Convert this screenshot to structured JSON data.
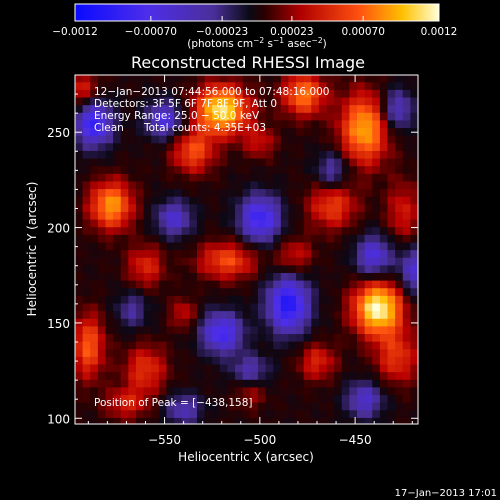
{
  "chart_data": {
    "type": "heatmap",
    "title": "Reconstructed RHESSI Image",
    "xlabel": "Heliocentric X (arcsec)",
    "ylabel": "Heliocentric Y (arcsec)",
    "xlim": [
      -597,
      -417
    ],
    "ylim": [
      97,
      280
    ],
    "x_ticks": [
      {
        "value": -550,
        "label": "−550"
      },
      {
        "value": -500,
        "label": "−500"
      },
      {
        "value": -450,
        "label": "−450"
      }
    ],
    "y_ticks": [
      {
        "value": 100,
        "label": "100"
      },
      {
        "value": 150,
        "label": "150"
      },
      {
        "value": 200,
        "label": "200"
      },
      {
        "value": 250,
        "label": "250"
      }
    ],
    "colorbar": {
      "range": [
        -0.0012,
        0.0012
      ],
      "ticks": [
        {
          "value": -0.0012,
          "label": "−0.0012"
        },
        {
          "value": -0.0007,
          "label": "−0.00070"
        },
        {
          "value": -0.00023,
          "label": "−0.00023"
        },
        {
          "value": 0.00023,
          "label": "0.00023"
        },
        {
          "value": 0.0007,
          "label": "0.00070"
        },
        {
          "value": 0.0012,
          "label": "0.0012"
        }
      ],
      "unit_label": "(photons cm",
      "unit_exp1": "−2",
      "unit_mid": " s",
      "unit_exp2": "−1",
      "unit_tail": " asec",
      "unit_exp3": "−2",
      "unit_close": ")"
    },
    "annotations": {
      "time_range": "12−Jan−2013 07:44:56.000 to 07:48:16.000",
      "detectors": "Detectors: 3F 5F 6F 7F 8F 9F, Att 0",
      "energy_range": "Energy Range: 25.0 − 50.0 keV",
      "method": "Clean",
      "total_counts": "Total counts: 4.35E+03",
      "peak": "Position of Peak = [−438,158]",
      "footer_timestamp": "17−Jan−2013 17:01"
    },
    "peak": {
      "x": -438,
      "y": 158
    },
    "image": {
      "nx": 45,
      "ny": 46,
      "dx_arcsec": 4,
      "dy_arcsec": 4,
      "x_center": -507,
      "y_center": 188.5,
      "sources": [
        {
          "x": -438,
          "y": 158,
          "amp": 0.0012,
          "sx": 9,
          "sy": 10
        },
        {
          "x": -520,
          "y": 262,
          "amp": 0.0011,
          "sx": 10,
          "sy": 9
        },
        {
          "x": -445,
          "y": 252,
          "amp": 0.0009,
          "sx": 9,
          "sy": 13
        },
        {
          "x": -477,
          "y": 270,
          "amp": 0.00075,
          "sx": 8,
          "sy": 8
        },
        {
          "x": -578,
          "y": 212,
          "amp": 0.00085,
          "sx": 8,
          "sy": 9
        },
        {
          "x": -535,
          "y": 240,
          "amp": 0.0006,
          "sx": 8,
          "sy": 8
        },
        {
          "x": -517,
          "y": 183,
          "amp": 0.0006,
          "sx": 11,
          "sy": 7
        },
        {
          "x": -590,
          "y": 138,
          "amp": 0.00065,
          "sx": 6,
          "sy": 12
        },
        {
          "x": -560,
          "y": 180,
          "amp": 0.00045,
          "sx": 7,
          "sy": 8
        },
        {
          "x": -482,
          "y": 185,
          "amp": 0.0004,
          "sx": 7,
          "sy": 7
        },
        {
          "x": -462,
          "y": 212,
          "amp": 0.00055,
          "sx": 9,
          "sy": 9
        },
        {
          "x": -560,
          "y": 126,
          "amp": 0.0005,
          "sx": 8,
          "sy": 9
        },
        {
          "x": -470,
          "y": 130,
          "amp": 0.00045,
          "sx": 7,
          "sy": 7
        },
        {
          "x": -428,
          "y": 132,
          "amp": 0.0005,
          "sx": 8,
          "sy": 10
        },
        {
          "x": -425,
          "y": 208,
          "amp": 0.0004,
          "sx": 6,
          "sy": 12
        },
        {
          "x": -570,
          "y": 108,
          "amp": 0.0004,
          "sx": 8,
          "sy": 6
        },
        {
          "x": -505,
          "y": 114,
          "amp": 0.0003,
          "sx": 6,
          "sy": 6
        },
        {
          "x": -592,
          "y": 272,
          "amp": 0.00045,
          "sx": 6,
          "sy": 7
        },
        {
          "x": -540,
          "y": 155,
          "amp": 0.00035,
          "sx": 5,
          "sy": 6
        },
        {
          "x": -500,
          "y": 245,
          "amp": 0.00035,
          "sx": 6,
          "sy": 6
        },
        {
          "x": -587,
          "y": 255,
          "amp": -0.0009,
          "sx": 7,
          "sy": 9
        },
        {
          "x": -550,
          "y": 257,
          "amp": -0.0007,
          "sx": 7,
          "sy": 7
        },
        {
          "x": -500,
          "y": 205,
          "amp": -0.00085,
          "sx": 8,
          "sy": 9
        },
        {
          "x": -485,
          "y": 160,
          "amp": -0.001,
          "sx": 8,
          "sy": 11
        },
        {
          "x": -545,
          "y": 205,
          "amp": -0.0006,
          "sx": 7,
          "sy": 7
        },
        {
          "x": -520,
          "y": 145,
          "amp": -0.0008,
          "sx": 8,
          "sy": 8
        },
        {
          "x": -440,
          "y": 185,
          "amp": -0.0007,
          "sx": 7,
          "sy": 8
        },
        {
          "x": -428,
          "y": 262,
          "amp": -0.0006,
          "sx": 6,
          "sy": 8
        },
        {
          "x": -420,
          "y": 178,
          "amp": -0.0006,
          "sx": 5,
          "sy": 9
        },
        {
          "x": -540,
          "y": 105,
          "amp": -0.0005,
          "sx": 7,
          "sy": 6
        },
        {
          "x": -445,
          "y": 110,
          "amp": -0.0006,
          "sx": 7,
          "sy": 7
        },
        {
          "x": -462,
          "y": 230,
          "amp": -0.0005,
          "sx": 6,
          "sy": 7
        },
        {
          "x": -567,
          "y": 157,
          "amp": -0.0004,
          "sx": 6,
          "sy": 7
        },
        {
          "x": -505,
          "y": 125,
          "amp": -0.0005,
          "sx": 7,
          "sy": 6
        }
      ]
    }
  }
}
